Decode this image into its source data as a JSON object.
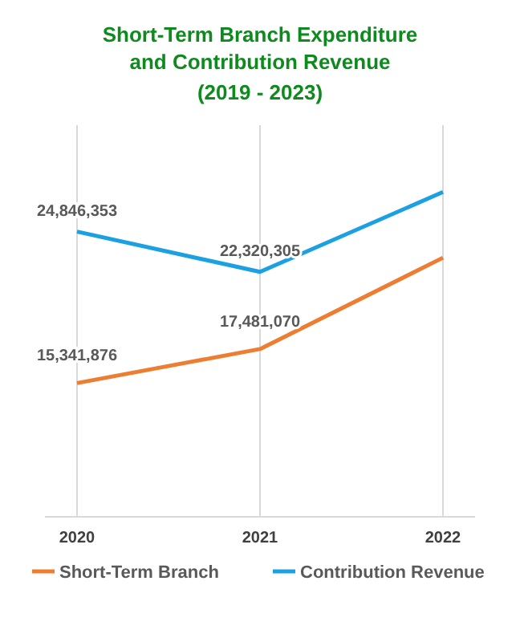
{
  "chart_data": {
    "type": "line",
    "title": "Short-Term Branch Expenditure and Contribution Revenue",
    "subtitle": "(2019 - 2023)",
    "categories": [
      "2020",
      "2021",
      "2022"
    ],
    "series": [
      {
        "name": "Short-Term Branch",
        "color": "#ed7d31",
        "values": [
          15341876,
          17481070,
          23210000
        ],
        "value_labels": [
          "15,341,876",
          "17,481,070",
          null
        ]
      },
      {
        "name": "Contribution Revenue",
        "color": "#1ba1e2",
        "values": [
          24846353,
          22320305,
          27330000
        ],
        "value_labels": [
          "24,846,353",
          "22,320,305",
          null
        ]
      }
    ],
    "grid": "x",
    "legend": "bottom",
    "marker": "none",
    "line_style": "solid"
  }
}
